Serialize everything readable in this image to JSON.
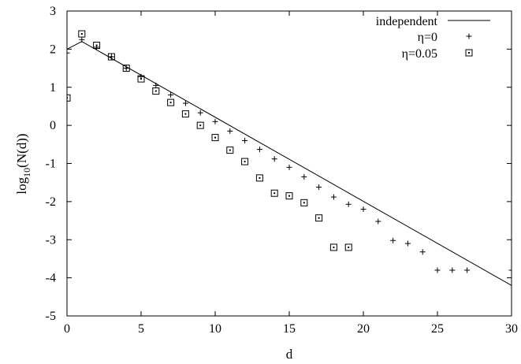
{
  "chart_data": {
    "type": "scatter",
    "xlabel": "d",
    "ylabel_base": "log",
    "ylabel_sub": "10",
    "ylabel_rest": "(N(d))",
    "xlim": [
      0,
      30
    ],
    "ylim": [
      -5,
      3
    ],
    "grid": false,
    "legend_position": "top-right",
    "x_ticks": [
      "0",
      "5",
      "10",
      "15",
      "20",
      "25",
      "30"
    ],
    "y_ticks": [
      "-5",
      "-4",
      "-3",
      "-2",
      "-1",
      "0",
      "1",
      "2",
      "3"
    ],
    "series": [
      {
        "name": "independent",
        "style": "line",
        "color": "#000000",
        "x": [
          0,
          1,
          30
        ],
        "y": [
          2.0,
          2.2,
          -4.2
        ]
      },
      {
        "name": "η=0",
        "style": "plus",
        "color": "#000000",
        "x": [
          0,
          1,
          2,
          3,
          4,
          5,
          6,
          7,
          8,
          9,
          10,
          11,
          12,
          13,
          14,
          15,
          16,
          17,
          18,
          19,
          20,
          21,
          22,
          23,
          24,
          25,
          26,
          27,
          30
        ],
        "y": [
          1.9,
          2.25,
          2.05,
          1.8,
          1.5,
          1.28,
          1.05,
          0.8,
          0.58,
          0.33,
          0.1,
          -0.15,
          -0.4,
          -0.63,
          -0.88,
          -1.1,
          -1.35,
          -1.62,
          -1.88,
          -2.07,
          -2.2,
          -2.52,
          -3.02,
          -3.1,
          -3.32,
          -3.8,
          -3.8,
          -3.8,
          -3.8
        ]
      },
      {
        "name": "η=0.05",
        "style": "square-dot",
        "color": "#000000",
        "x": [
          0,
          1,
          2,
          3,
          4,
          5,
          6,
          7,
          8,
          9,
          10,
          11,
          12,
          13,
          14,
          15,
          16,
          17,
          18,
          19
        ],
        "y": [
          0.72,
          2.4,
          2.1,
          1.8,
          1.5,
          1.22,
          0.9,
          0.6,
          0.3,
          0.0,
          -0.32,
          -0.65,
          -0.95,
          -1.38,
          -1.78,
          -1.85,
          -2.03,
          -2.43,
          -3.2,
          -3.2
        ]
      }
    ]
  }
}
